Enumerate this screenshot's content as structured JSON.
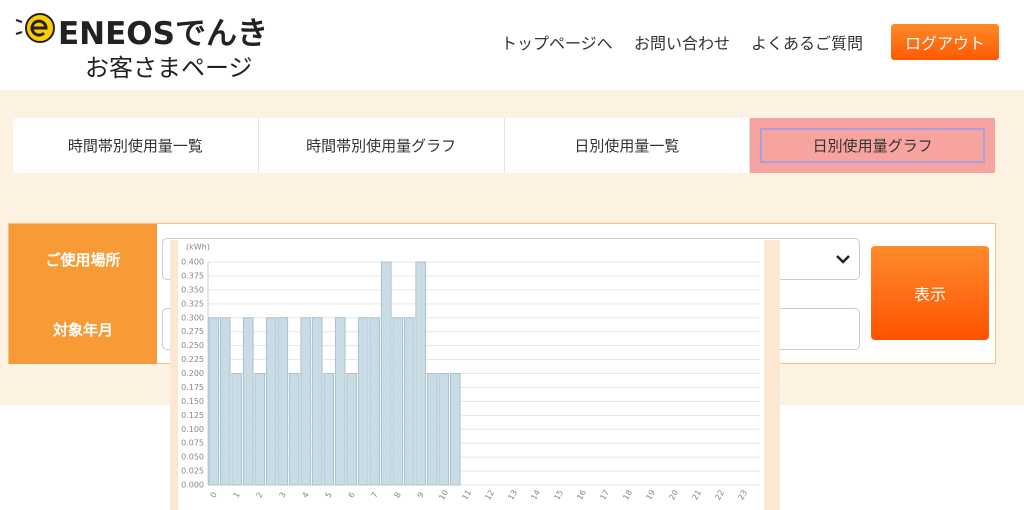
{
  "header": {
    "logo": "ENEOSでんき",
    "subtitle": "お客さまページ",
    "nav": [
      "トップページへ",
      "お問い合わせ",
      "よくあるご質問"
    ],
    "logout": "ログアウト"
  },
  "tabs": [
    "時間帯別使用量一覧",
    "時間帯別使用量グラフ",
    "日別使用量一覧",
    "日別使用量グラフ"
  ],
  "form": {
    "labels": [
      "ご使用場所",
      "対象年月"
    ],
    "button": "表示"
  },
  "chart_data": {
    "type": "bar",
    "y_label": "(kWh)",
    "color": "#c9dce6",
    "grid": true,
    "categories": [
      "0",
      null,
      "1",
      null,
      "2",
      null,
      "3",
      null,
      "4",
      null,
      "5",
      null,
      "6",
      null,
      "7",
      null,
      "8",
      null,
      "9",
      null,
      "10",
      null,
      "11",
      null,
      "12",
      null,
      "13",
      null,
      "14",
      null,
      "15",
      null,
      "16",
      null,
      "17",
      null,
      "18",
      null,
      "19",
      null,
      "20",
      null,
      "21",
      null,
      "22",
      null,
      "23",
      null
    ],
    "values": [
      0.3,
      0.3,
      0.2,
      0.3,
      0.2,
      0.3,
      0.3,
      0.2,
      0.3,
      0.3,
      0.2,
      0.3,
      0.2,
      0.3,
      0.3,
      0.4,
      0.3,
      0.3,
      0.4,
      0.2,
      0.2,
      0.2,
      null,
      null,
      null,
      null,
      null,
      null,
      null,
      null,
      null,
      null,
      null,
      null,
      null,
      null,
      null,
      null,
      null,
      null,
      null,
      null,
      null,
      null,
      null,
      null,
      null,
      null
    ],
    "ylim": [
      0,
      0.4
    ],
    "yticks": [
      {
        "value": 0,
        "label": "0.000"
      },
      {
        "value": 0.025,
        "label": "0.025"
      },
      {
        "value": 0.05,
        "label": "0.050"
      },
      {
        "value": 0.075,
        "label": "0.075"
      },
      {
        "value": 0.1,
        "label": "0.100"
      },
      {
        "value": 0.125,
        "label": "0.125"
      },
      {
        "value": 0.15,
        "label": "0.150"
      },
      {
        "value": 0.175,
        "label": "0.175"
      },
      {
        "value": 0.2,
        "label": "0.200"
      },
      {
        "value": 0.225,
        "label": "0.225"
      },
      {
        "value": 0.25,
        "label": "0.250"
      },
      {
        "value": 0.275,
        "label": "0.275"
      },
      {
        "value": 0.3,
        "label": "0.300"
      },
      {
        "value": 0.325,
        "label": "0.325"
      },
      {
        "value": 0.35,
        "label": "0.350"
      },
      {
        "value": 0.375,
        "label": "0.375"
      },
      {
        "value": 0.4,
        "label": "0.400"
      }
    ]
  }
}
